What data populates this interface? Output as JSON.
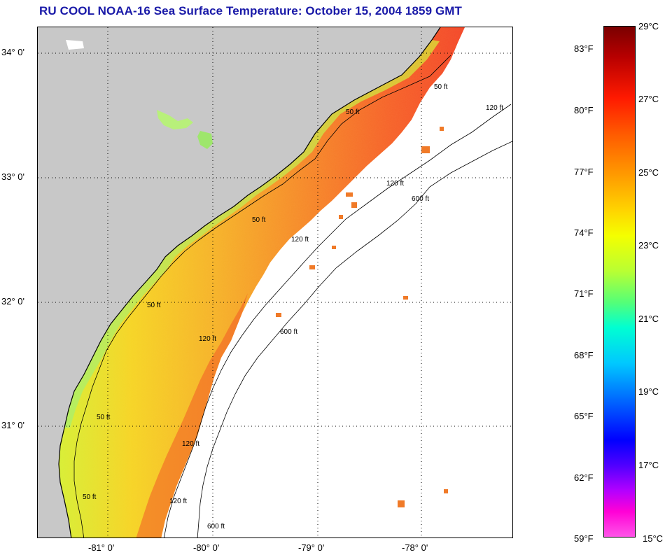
{
  "title": "RU COOL  NOAA-16  Sea Surface Temperature:  October 15, 2004 1859 GMT",
  "axes": {
    "latitudes": [
      "34° 0'",
      "33° 0'",
      "32° 0'",
      "31° 0'"
    ],
    "longitudes": [
      "-81° 0'",
      "-80° 0'",
      "-79° 0'",
      "-78° 0'"
    ]
  },
  "contours": {
    "labels_50": [
      "50 ft",
      "50 ft",
      "50 ft",
      "50 ft",
      "50 ft",
      "50 ft"
    ],
    "labels_120": [
      "120 ft",
      "120 ft",
      "120 ft",
      "120 ft",
      "120 ft",
      "120 ft"
    ],
    "labels_600": [
      "600 ft",
      "600 ft",
      "600 ft"
    ]
  },
  "colorbar": {
    "fahrenheit": [
      "83°F",
      "80°F",
      "77°F",
      "74°F",
      "71°F",
      "68°F",
      "65°F",
      "62°F",
      "59°F"
    ],
    "celsius": [
      "29°C",
      "27°C",
      "25°C",
      "23°C",
      "21°C",
      "19°C",
      "17°C",
      "15°C"
    ]
  },
  "colors": {
    "land": "#c8c8c8",
    "title": "#1919a8",
    "coastline": "#000000",
    "grid": "#000000"
  }
}
